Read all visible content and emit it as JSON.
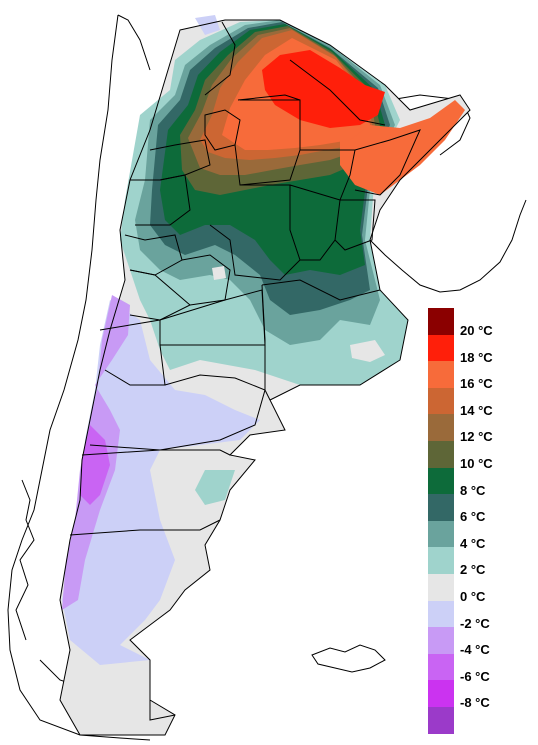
{
  "legend": {
    "items": [
      {
        "label": "20 °C",
        "color": "#8b0000"
      },
      {
        "label": "18 °C",
        "color": "#ff1f0a"
      },
      {
        "label": "16 °C",
        "color": "#f76b3a"
      },
      {
        "label": "14 °C",
        "color": "#cc6633"
      },
      {
        "label": "12 °C",
        "color": "#9a6a3a"
      },
      {
        "label": "10 °C",
        "color": "#5e6637"
      },
      {
        "label": "8 °C",
        "color": "#0d6b3a"
      },
      {
        "label": "6 °C",
        "color": "#336866"
      },
      {
        "label": "4 °C",
        "color": "#6aa39d"
      },
      {
        "label": "2 °C",
        "color": "#9fd3cc"
      },
      {
        "label": "0 °C",
        "color": "#e6e6e6"
      },
      {
        "label": "-2 °C",
        "color": "#ccd0f7"
      },
      {
        "label": "-4 °C",
        "color": "#c89af5"
      },
      {
        "label": "-6 °C",
        "color": "#c964f3"
      },
      {
        "label": "-8 °C",
        "color": "#cb33f0"
      },
      {
        "label": "",
        "color": "#9b3ac9"
      }
    ]
  },
  "map": {
    "region": "argentina",
    "bands": [
      {
        "name": "band-0c",
        "color": "#e6e6e6"
      },
      {
        "name": "band-m2c",
        "color": "#ccd0f7"
      },
      {
        "name": "band-m4c",
        "color": "#c89af5"
      },
      {
        "name": "band-m6c",
        "color": "#c964f3"
      },
      {
        "name": "band-2c",
        "color": "#9fd3cc"
      },
      {
        "name": "band-4c",
        "color": "#6aa39d"
      },
      {
        "name": "band-6c",
        "color": "#336866"
      },
      {
        "name": "band-8c",
        "color": "#0d6b3a"
      },
      {
        "name": "band-10c",
        "color": "#5e6637"
      },
      {
        "name": "band-12c",
        "color": "#9a6a3a"
      },
      {
        "name": "band-14c",
        "color": "#cc6633"
      },
      {
        "name": "band-16c",
        "color": "#f76b3a"
      },
      {
        "name": "band-18c",
        "color": "#ff1f0a"
      }
    ]
  }
}
